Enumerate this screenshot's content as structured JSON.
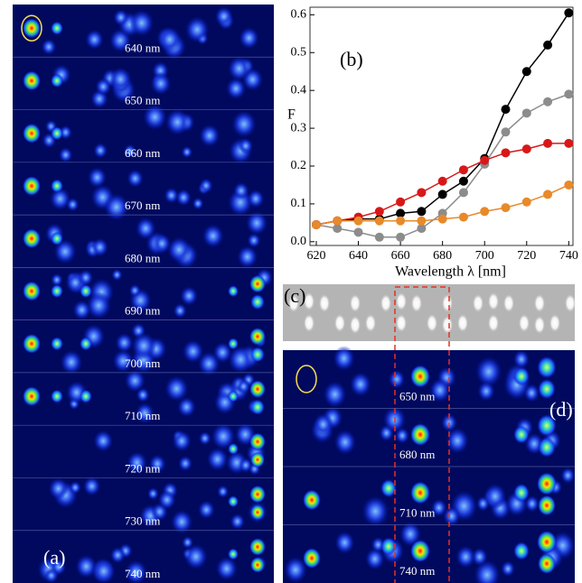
{
  "chart_data": {
    "type": "line",
    "xlabel": "Wavelength λ [nm]",
    "ylabel": "F",
    "annotation": "(b)",
    "x": [
      620,
      630,
      640,
      650,
      660,
      670,
      680,
      690,
      700,
      710,
      720,
      730,
      740
    ],
    "series": [
      {
        "color": "#000000",
        "values": [
          0.045,
          0.055,
          0.06,
          0.06,
          0.075,
          0.08,
          0.125,
          0.16,
          0.22,
          0.35,
          0.45,
          0.52,
          0.605
        ]
      },
      {
        "color": "#8c8c8c",
        "values": [
          0.045,
          0.035,
          0.025,
          0.012,
          0.012,
          0.035,
          0.075,
          0.13,
          0.205,
          0.29,
          0.34,
          0.37,
          0.39
        ]
      },
      {
        "color": "#d81818",
        "values": [
          0.045,
          0.055,
          0.065,
          0.08,
          0.105,
          0.13,
          0.16,
          0.19,
          0.215,
          0.235,
          0.245,
          0.26,
          0.26
        ]
      },
      {
        "color": "#e8892a",
        "values": [
          0.045,
          0.055,
          0.055,
          0.055,
          0.055,
          0.055,
          0.06,
          0.065,
          0.08,
          0.09,
          0.105,
          0.125,
          0.15
        ]
      }
    ],
    "xlim": [
      617,
      742
    ],
    "xticks": [
      620,
      640,
      660,
      680,
      700,
      720,
      740
    ],
    "ylim": [
      -0.01,
      0.62
    ],
    "yticks": [
      {
        "value": 0,
        "label": "0.0"
      },
      0.1,
      0.2,
      0.3,
      0.4,
      0.5,
      0.6
    ]
  },
  "panel_a": {
    "label": "(a)",
    "wavelengths": [
      "640 nm",
      "650 nm",
      "660 nm",
      "670 nm",
      "680 nm",
      "690 nm",
      "700 nm",
      "710 nm",
      "720 nm",
      "730 nm",
      "740 nm"
    ]
  },
  "panel_c": {
    "label": "(c)"
  },
  "panel_d": {
    "label": "(d)",
    "wavelengths": [
      "650 nm",
      "680 nm",
      "710 nm",
      "740 nm"
    ]
  }
}
